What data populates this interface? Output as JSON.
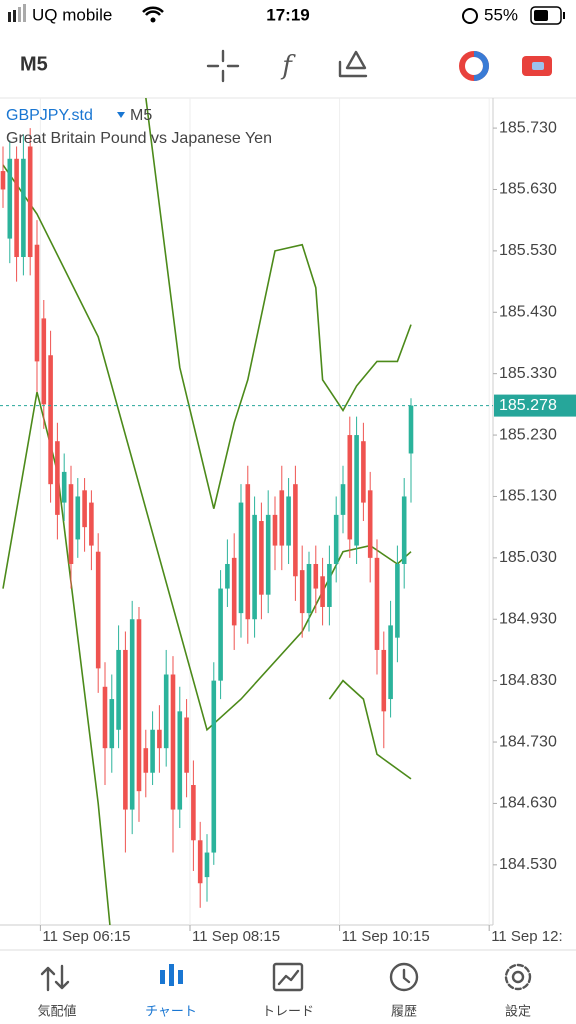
{
  "status_bar": {
    "carrier": "UQ mobile",
    "time": "17:19",
    "battery": "55%"
  },
  "toolbar": {
    "timeframe": "M5"
  },
  "chart_data": {
    "type": "candlestick",
    "symbol": "GBPJPY.std",
    "timeframe": "M5",
    "description": "Great Britain Pound vs Japanese Yen",
    "open": [
      185.66,
      185.55,
      185.68,
      185.52,
      185.7,
      185.54,
      185.42,
      185.36,
      185.22,
      185.12,
      185.15,
      185.06,
      185.14,
      185.12,
      185.04,
      184.82,
      184.72,
      184.75,
      184.88,
      184.62,
      184.93,
      184.72,
      184.68,
      184.75,
      184.72,
      184.84,
      184.62,
      184.77,
      184.66,
      184.57,
      184.51,
      184.55,
      184.83,
      184.98,
      185.03,
      184.94,
      185.15,
      184.93,
      185.09,
      184.97,
      185.1,
      185.14,
      185.05,
      185.15,
      185.01,
      184.94,
      185.02,
      185.0,
      184.95,
      185.02,
      185.1,
      185.23,
      185.05,
      185.22,
      185.14,
      185.03,
      184.88,
      184.8,
      184.9,
      185.02,
      185.2
    ],
    "high": [
      185.7,
      185.71,
      185.7,
      185.72,
      185.73,
      185.58,
      185.45,
      185.4,
      185.25,
      185.2,
      185.18,
      185.16,
      185.16,
      185.14,
      185.07,
      184.86,
      184.84,
      184.92,
      184.91,
      184.96,
      184.95,
      184.75,
      184.78,
      184.79,
      184.88,
      184.87,
      184.82,
      184.8,
      184.7,
      184.6,
      184.58,
      184.86,
      185.01,
      185.06,
      185.07,
      185.15,
      185.18,
      185.13,
      185.12,
      185.14,
      185.13,
      185.18,
      185.16,
      185.18,
      185.05,
      185.04,
      185.05,
      185.03,
      185.05,
      185.13,
      185.18,
      185.26,
      185.26,
      185.25,
      185.17,
      185.06,
      184.91,
      184.96,
      185.05,
      185.16,
      185.29
    ],
    "low": [
      185.6,
      185.51,
      185.48,
      185.49,
      185.49,
      185.3,
      185.24,
      185.12,
      185.06,
      185.09,
      184.98,
      185.03,
      185.04,
      185.01,
      184.81,
      184.66,
      184.68,
      184.72,
      184.55,
      184.58,
      184.6,
      184.64,
      184.66,
      184.68,
      184.69,
      184.55,
      184.59,
      184.64,
      184.52,
      184.46,
      184.47,
      184.53,
      184.8,
      184.95,
      184.88,
      184.9,
      184.89,
      184.9,
      184.93,
      184.94,
      185.01,
      185.01,
      185.02,
      184.96,
      184.9,
      184.91,
      184.94,
      184.92,
      184.92,
      184.99,
      185.07,
      185.03,
      185.02,
      185.09,
      184.99,
      184.84,
      184.72,
      184.77,
      184.86,
      184.98,
      185.12
    ],
    "close": [
      185.63,
      185.68,
      185.52,
      185.68,
      185.52,
      185.35,
      185.28,
      185.15,
      185.1,
      185.17,
      185.02,
      185.13,
      185.08,
      185.05,
      184.85,
      184.72,
      184.8,
      184.88,
      184.62,
      184.93,
      184.65,
      184.68,
      184.75,
      184.72,
      184.84,
      184.62,
      184.78,
      184.68,
      184.57,
      184.5,
      184.55,
      184.83,
      184.98,
      185.02,
      184.92,
      185.12,
      184.93,
      185.1,
      184.97,
      185.1,
      185.05,
      185.05,
      185.13,
      185.0,
      184.94,
      185.02,
      184.98,
      184.95,
      185.02,
      185.1,
      185.15,
      185.06,
      185.23,
      185.12,
      185.03,
      184.88,
      184.78,
      184.92,
      185.02,
      185.13,
      185.278
    ],
    "up_color": "#2bb39b",
    "down_color": "#ef5350",
    "bands": [
      {
        "color": "#4c8a1a",
        "x": [
          0,
          15,
          21,
          26,
          31,
          34,
          36,
          40,
          44,
          46,
          47,
          50,
          52,
          55,
          58,
          60
        ],
        "values": [
          185.95,
          185.9,
          185.78,
          185.34,
          185.11,
          185.25,
          185.32,
          185.53,
          185.54,
          185.47,
          185.32,
          185.27,
          185.31,
          185.35,
          185.35,
          185.41
        ]
      },
      {
        "color": "#4c8a1a",
        "x": [
          0,
          5,
          14,
          21,
          30,
          35,
          44,
          50,
          54,
          58,
          60
        ],
        "values": [
          185.67,
          185.59,
          185.39,
          185.11,
          184.75,
          184.8,
          184.91,
          185.04,
          185.05,
          185.02,
          185.04
        ]
      },
      {
        "color": "#4c8a1a",
        "x": [
          0,
          5,
          8,
          14,
          16,
          47,
          48,
          50,
          53,
          55,
          60
        ],
        "values": [
          184.98,
          185.3,
          185.17,
          184.63,
          184.4,
          null,
          184.8,
          184.83,
          184.8,
          184.71,
          184.67
        ]
      }
    ],
    "last_price": 185.278,
    "last_color": "#26a69a",
    "xlim": [
      -0.44,
      72.06
    ],
    "ylim": [
      184.432,
      185.779
    ],
    "xticks": [
      {
        "value": 5.5,
        "label": "11 Sep 06:15"
      },
      {
        "value": 27.5,
        "label": "11 Sep 08:15"
      },
      {
        "value": 49.5,
        "label": "11 Sep 10:15"
      },
      {
        "value": 71.5,
        "label": "11 Sep 12:"
      }
    ],
    "yticks": [
      {
        "value": 184.53,
        "label": "184.530"
      },
      {
        "value": 184.63,
        "label": "184.630"
      },
      {
        "value": 184.73,
        "label": "184.730"
      },
      {
        "value": 184.83,
        "label": "184.830"
      },
      {
        "value": 184.93,
        "label": "184.930"
      },
      {
        "value": 185.03,
        "label": "185.030"
      },
      {
        "value": 185.13,
        "label": "185.130"
      },
      {
        "value": 185.23,
        "label": "185.230"
      },
      {
        "value": 185.33,
        "label": "185.330"
      },
      {
        "value": 185.43,
        "label": "185.430"
      },
      {
        "value": 185.53,
        "label": "185.530"
      },
      {
        "value": 185.63,
        "label": "185.630"
      },
      {
        "value": 185.73,
        "label": "185.730"
      }
    ],
    "grid": true
  },
  "nav": [
    "気配値",
    "チャート",
    "トレード",
    "履歴",
    "設定"
  ]
}
